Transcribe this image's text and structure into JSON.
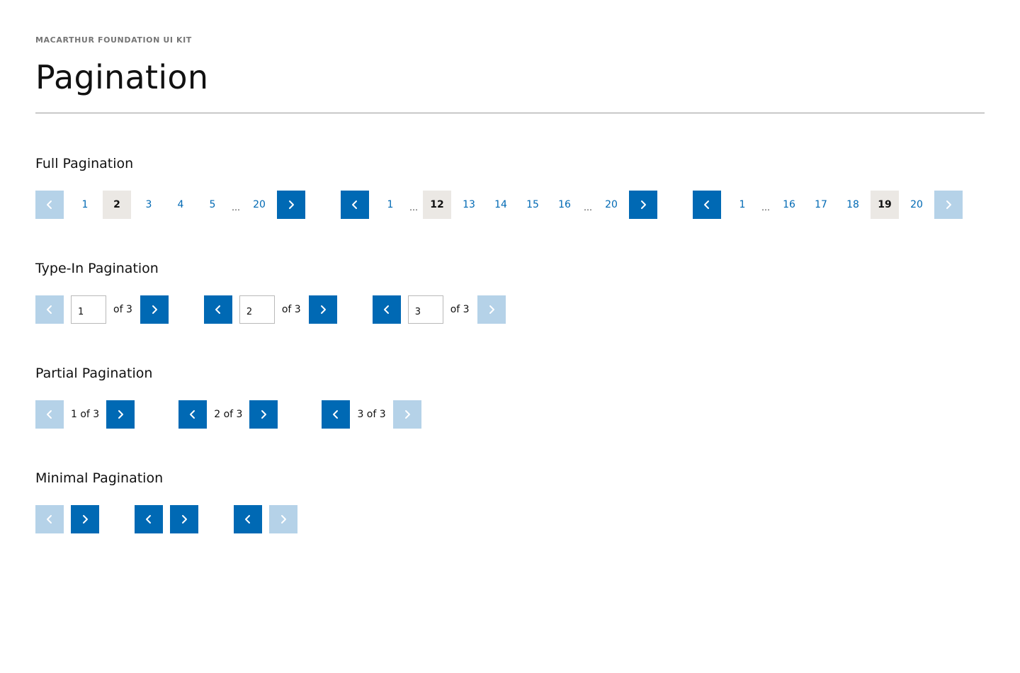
{
  "header": {
    "kit_label": "MACARTHUR FOUNDATION UI KIT",
    "page_title": "Pagination"
  },
  "colors": {
    "accent": "#0069b4",
    "disabled": "#b5d2e8",
    "current_bg": "#ebe8e4"
  },
  "icons": {
    "prev": "chevron-left-icon",
    "next": "chevron-right-icon"
  },
  "sections": {
    "full": {
      "title": "Full Pagination",
      "examples": [
        {
          "prev_disabled": true,
          "next_disabled": false,
          "current": "2",
          "items": [
            "1",
            "2",
            "3",
            "4",
            "5",
            "…",
            "20"
          ]
        },
        {
          "prev_disabled": false,
          "next_disabled": false,
          "current": "12",
          "items": [
            "1",
            "…",
            "12",
            "13",
            "14",
            "15",
            "16",
            "…",
            "20"
          ]
        },
        {
          "prev_disabled": false,
          "next_disabled": true,
          "current": "19",
          "items": [
            "1",
            "…",
            "16",
            "17",
            "18",
            "19",
            "20"
          ]
        }
      ]
    },
    "typein": {
      "title": "Type-In Pagination",
      "examples": [
        {
          "prev_disabled": true,
          "next_disabled": false,
          "value": "1",
          "of_text": "of 3"
        },
        {
          "prev_disabled": false,
          "next_disabled": false,
          "value": "2",
          "of_text": "of 3"
        },
        {
          "prev_disabled": false,
          "next_disabled": true,
          "value": "3",
          "of_text": "of 3"
        }
      ]
    },
    "partial": {
      "title": "Partial Pagination",
      "examples": [
        {
          "prev_disabled": true,
          "next_disabled": false,
          "text": "1 of 3"
        },
        {
          "prev_disabled": false,
          "next_disabled": false,
          "text": "2 of 3"
        },
        {
          "prev_disabled": false,
          "next_disabled": true,
          "text": "3 of 3"
        }
      ]
    },
    "minimal": {
      "title": "Minimal Pagination",
      "examples": [
        {
          "prev_disabled": true,
          "next_disabled": false
        },
        {
          "prev_disabled": false,
          "next_disabled": false
        },
        {
          "prev_disabled": false,
          "next_disabled": true
        }
      ]
    }
  }
}
